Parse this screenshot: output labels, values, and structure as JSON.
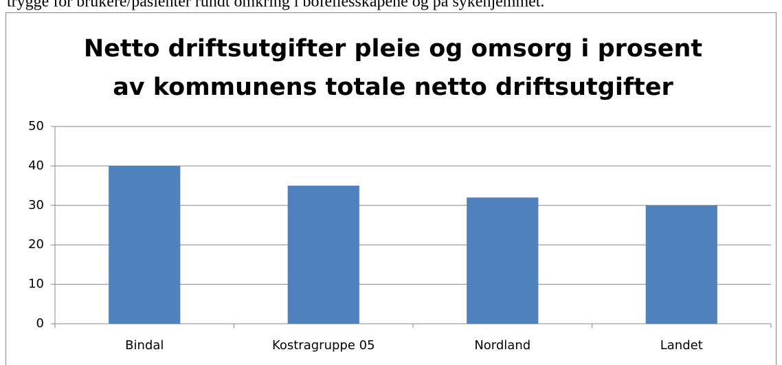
{
  "document_text": "trygge for brukere/pasienter rundt omkring i bofellesskapene og på sykehjemmet.",
  "chart_data": {
    "type": "bar",
    "title": [
      "Netto driftsutgifter pleie og omsorg i prosent",
      "av kommunens totale netto driftsutgifter"
    ],
    "categories": [
      "Bindal",
      "Kostragruppe 05",
      "Nordland",
      "Landet"
    ],
    "values": [
      40,
      35,
      32,
      30
    ],
    "color": "#4f81bd",
    "ylim": [
      0,
      50
    ],
    "yticks": [
      0,
      10,
      20,
      30,
      40,
      50
    ],
    "grid": true
  }
}
